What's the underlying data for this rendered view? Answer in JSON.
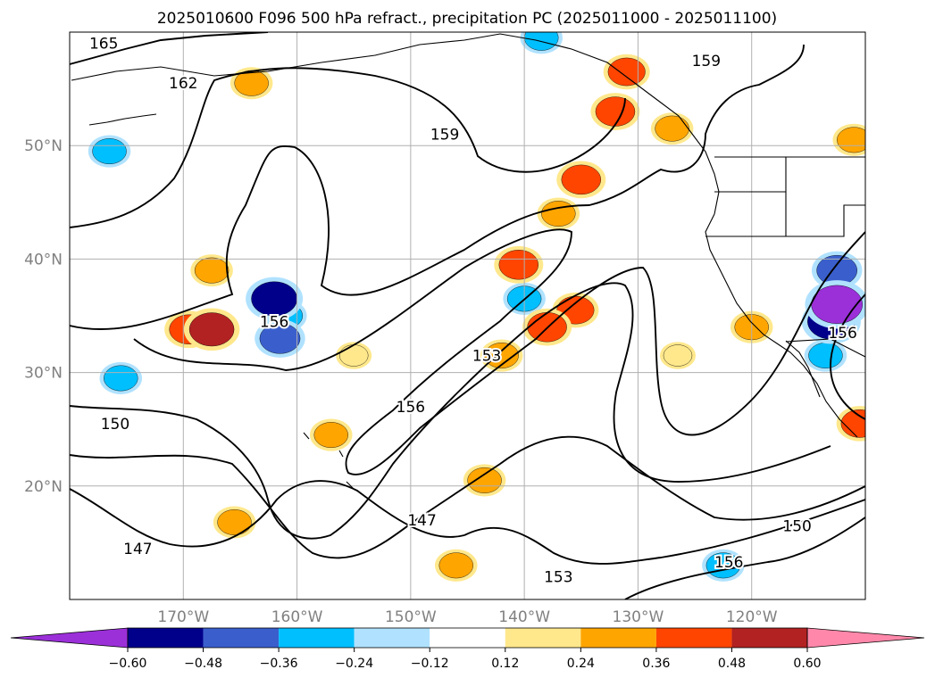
{
  "chart_data": {
    "type": "heatmap",
    "title": "2025010600 F096 500 hPa refract., precipitation PC (2025011000 - 2025011100)",
    "projection": "map",
    "x_axis": {
      "range": [
        "-180",
        "-110"
      ],
      "ticks": [
        {
          "value": -170,
          "label": "170°W"
        },
        {
          "value": -160,
          "label": "160°W"
        },
        {
          "value": -150,
          "label": "150°W"
        },
        {
          "value": -140,
          "label": "140°W"
        },
        {
          "value": -130,
          "label": "130°W"
        },
        {
          "value": -120,
          "label": "120°W"
        }
      ]
    },
    "y_axis": {
      "range": [
        10,
        60
      ],
      "ticks": [
        {
          "value": 20,
          "label": "20°N"
        },
        {
          "value": 30,
          "label": "30°N"
        },
        {
          "value": 40,
          "label": "40°N"
        },
        {
          "value": 50,
          "label": "50°N"
        }
      ]
    },
    "grid": true,
    "contour_labels": [
      {
        "text": "165",
        "lon": -177,
        "lat": 59
      },
      {
        "text": "162",
        "lon": -170,
        "lat": 55.5
      },
      {
        "text": "159",
        "lon": -147,
        "lat": 51
      },
      {
        "text": "159",
        "lon": -124,
        "lat": 57.5
      },
      {
        "text": "156",
        "lon": -162,
        "lat": 34.5
      },
      {
        "text": "156",
        "lon": -150,
        "lat": 27
      },
      {
        "text": "156",
        "lon": -112,
        "lat": 33.5
      },
      {
        "text": "156",
        "lon": -122,
        "lat": 13.3
      },
      {
        "text": "153",
        "lon": -143.3,
        "lat": 31.5
      },
      {
        "text": "153",
        "lon": -137,
        "lat": 12
      },
      {
        "text": "150",
        "lon": -176,
        "lat": 25.5
      },
      {
        "text": "150",
        "lon": -116,
        "lat": 16.5
      },
      {
        "text": "147",
        "lon": -174,
        "lat": 14.5
      },
      {
        "text": "147",
        "lon": -149,
        "lat": 17
      }
    ],
    "colorbar": {
      "levels": [
        "-0.60",
        "-0.48",
        "-0.36",
        "-0.24",
        "-0.12",
        "0.12",
        "0.24",
        "0.36",
        "0.48",
        "0.60"
      ],
      "colors": [
        "#9b30d9",
        "#00008b",
        "#3a5fcd",
        "#00bfff",
        "#b0e2ff",
        "#ffffff",
        "#ffe88c",
        "#ffa500",
        "#ff4500",
        "#b22222",
        "#ff88aa"
      ],
      "extend": "both"
    },
    "precip_cells": [
      {
        "lon": -132,
        "lat": 53,
        "value": 0.4
      },
      {
        "lon": -135,
        "lat": 47,
        "value": 0.4
      },
      {
        "lon": -137,
        "lat": 44,
        "value": 0.3
      },
      {
        "lon": -131,
        "lat": 56.5,
        "value": 0.36
      },
      {
        "lon": -167.5,
        "lat": 33.8,
        "value": 0.5
      },
      {
        "lon": -169.5,
        "lat": 33.8,
        "value": 0.4
      },
      {
        "lon": -140.5,
        "lat": 39.5,
        "value": 0.4
      },
      {
        "lon": -138,
        "lat": 34,
        "value": 0.4
      },
      {
        "lon": -135.5,
        "lat": 35.5,
        "value": 0.36
      },
      {
        "lon": -142,
        "lat": 31.5,
        "value": 0.3
      },
      {
        "lon": -162,
        "lat": 36.5,
        "value": -0.52
      },
      {
        "lon": -161.5,
        "lat": 33,
        "value": -0.42
      },
      {
        "lon": -161,
        "lat": 35,
        "value": -0.3
      },
      {
        "lon": -140,
        "lat": 36.5,
        "value": -0.3
      },
      {
        "lon": -113,
        "lat": 34.5,
        "value": -0.55
      },
      {
        "lon": -112.5,
        "lat": 36,
        "value": -0.62
      },
      {
        "lon": -113.5,
        "lat": 31.5,
        "value": -0.3
      },
      {
        "lon": -112.5,
        "lat": 39,
        "value": -0.42
      },
      {
        "lon": -111,
        "lat": 50.5,
        "value": 0.3
      },
      {
        "lon": -127,
        "lat": 51.5,
        "value": 0.3
      },
      {
        "lon": -167.5,
        "lat": 39,
        "value": 0.3
      },
      {
        "lon": -176.5,
        "lat": 49.5,
        "value": -0.3
      },
      {
        "lon": -175.5,
        "lat": 29.5,
        "value": -0.3
      },
      {
        "lon": -138.5,
        "lat": 59.5,
        "value": -0.3
      },
      {
        "lon": -122.5,
        "lat": 13,
        "value": -0.3
      },
      {
        "lon": -110.5,
        "lat": 25.5,
        "value": 0.36
      },
      {
        "lon": -120,
        "lat": 34,
        "value": 0.3
      },
      {
        "lon": -126.5,
        "lat": 31.5,
        "value": 0.2
      },
      {
        "lon": -164,
        "lat": 55.5,
        "value": 0.3
      },
      {
        "lon": -143.5,
        "lat": 20.5,
        "value": 0.3
      },
      {
        "lon": -155,
        "lat": 31.5,
        "value": 0.2
      },
      {
        "lon": -157,
        "lat": 24.5,
        "value": 0.3
      },
      {
        "lon": -165.5,
        "lat": 16.8,
        "value": 0.3
      },
      {
        "lon": -146,
        "lat": 13,
        "value": 0.3
      }
    ]
  }
}
